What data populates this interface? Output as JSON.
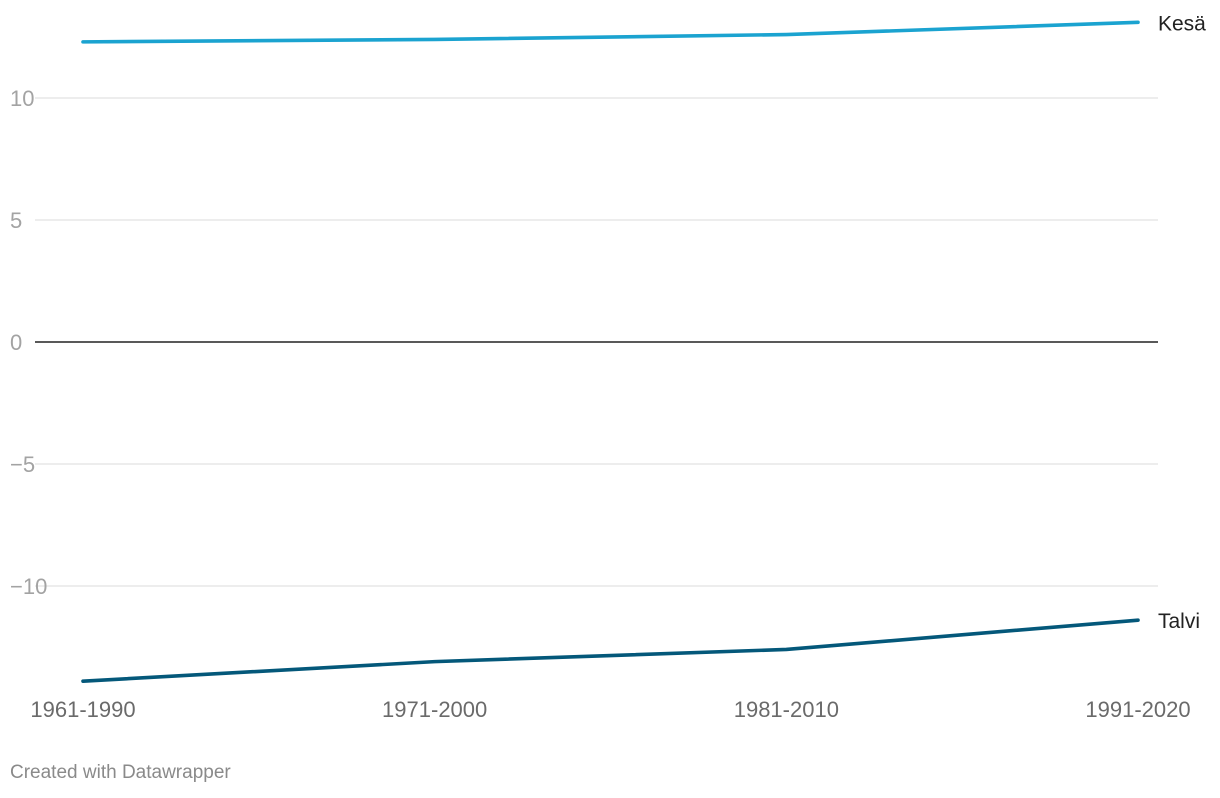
{
  "chart_data": {
    "type": "line",
    "categories": [
      "1961-1990",
      "1971-2000",
      "1981-2010",
      "1991-2020"
    ],
    "series": [
      {
        "name": "Kesä",
        "values": [
          12.3,
          12.4,
          12.6,
          13.1
        ],
        "color": "#1ba3d0"
      },
      {
        "name": "Talvi",
        "values": [
          -13.9,
          -13.1,
          -12.6,
          -11.4
        ],
        "color": "#04587a"
      }
    ],
    "yticks": [
      10,
      5,
      0,
      -5,
      -10
    ],
    "ytick_labels": [
      "10",
      "5",
      "0",
      "−5",
      "−10"
    ],
    "ylim": [
      -14,
      13.5
    ],
    "grid": true,
    "legend": "direct labels at line ends"
  },
  "footer": {
    "credit": "Created with Datawrapper"
  }
}
